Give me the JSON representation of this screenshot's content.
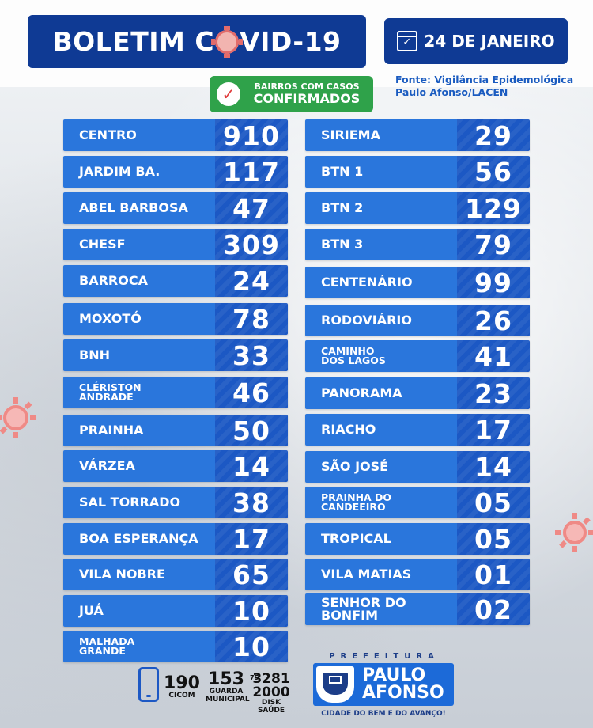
{
  "header": {
    "title_part1": "BOLETIM C",
    "title_part2": "VID-19",
    "date": "24 DE JANEIRO"
  },
  "badge": {
    "line1": "BAIRROS COM CASOS",
    "line2": "CONFIRMADOS"
  },
  "source": {
    "line1": "Fonte: Vigilância Epidemológica",
    "line2": "Paulo Afonso/LACEN"
  },
  "left_column": [
    {
      "name": "CENTRO",
      "value": "910"
    },
    {
      "name": "JARDIM BA.",
      "value": "117"
    },
    {
      "name": "ABEL BARBOSA",
      "value": "47"
    },
    {
      "name": "CHESF",
      "value": "309"
    },
    {
      "name": "BARROCA",
      "value": "24"
    },
    {
      "name": "MOXOTÓ",
      "value": "78"
    },
    {
      "name": "BNH",
      "value": "33"
    },
    {
      "name_l1": "CLÉRISTON",
      "name_l2": "ANDRADE",
      "value": "46"
    },
    {
      "name": "PRAINHA",
      "value": "50"
    },
    {
      "name": "VÁRZEA",
      "value": "14"
    },
    {
      "name": "SAL TORRADO",
      "value": "38"
    },
    {
      "name": "BOA ESPERANÇA",
      "value": "17"
    },
    {
      "name": "VILA NOBRE",
      "value": "65"
    },
    {
      "name": "JUÁ",
      "value": "10"
    },
    {
      "name_l1": "MALHADA",
      "name_l2": "GRANDE",
      "value": "10"
    }
  ],
  "right_column": [
    {
      "name": "SIRIEMA",
      "value": "29"
    },
    {
      "name": "BTN 1",
      "value": "56"
    },
    {
      "name": "BTN 2",
      "value": "129"
    },
    {
      "name": "BTN 3",
      "value": "79"
    },
    {
      "name": "CENTENÁRIO",
      "value": "99"
    },
    {
      "name": "RODOVIÁRIO",
      "value": "26"
    },
    {
      "name_l1": "CAMINHO",
      "name_l2": "DOS LAGOS",
      "value": "41"
    },
    {
      "name": "PANORAMA",
      "value": "23"
    },
    {
      "name": "RIACHO",
      "value": "17"
    },
    {
      "name": "SÃO JOSÉ",
      "value": "14"
    },
    {
      "name_l1": "PRAINHA DO",
      "name_l2": "CANDEEIRO",
      "value": "05"
    },
    {
      "name": "TROPICAL",
      "value": "05"
    },
    {
      "name": "VILA MATIAS",
      "value": "01"
    },
    {
      "name": "SENHOR DO BONFIM",
      "value": "02"
    }
  ],
  "footer": {
    "cicom_number": "190",
    "cicom_label": "CICOM",
    "guarda_number": "153",
    "guarda_label1": "GUARDA",
    "guarda_label2": "MUNICIPAL",
    "disk_prefix": "75",
    "disk_number1": "3281",
    "disk_number2": "2000",
    "disk_label": "DISK SAÚDE",
    "prefeitura": "PREFEITURA",
    "city_line1": "PAULO",
    "city_line2": "AFONSO",
    "slogan": "CIDADE DO BEM E DO AVANÇO!"
  },
  "colors": {
    "navy": "#0f3a94",
    "row_name": "#2a76dc",
    "row_value": "#1c58c4",
    "green": "#2fa24a",
    "virus": "#ef8a86"
  }
}
